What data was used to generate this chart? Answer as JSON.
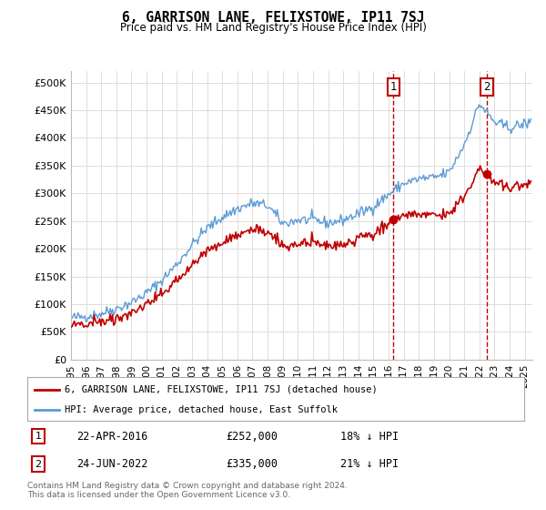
{
  "title": "6, GARRISON LANE, FELIXSTOWE, IP11 7SJ",
  "subtitle": "Price paid vs. HM Land Registry's House Price Index (HPI)",
  "ytick_values": [
    0,
    50000,
    100000,
    150000,
    200000,
    250000,
    300000,
    350000,
    400000,
    450000,
    500000
  ],
  "ylim": [
    0,
    520000
  ],
  "xlim_start": 1995.0,
  "xlim_end": 2025.5,
  "hpi_color": "#5b9bd5",
  "price_color": "#c00000",
  "marker1_date": 2016.31,
  "marker1_price": 252000,
  "marker2_date": 2022.48,
  "marker2_price": 335000,
  "annotation1_date": "22-APR-2016",
  "annotation1_price": "£252,000",
  "annotation1_hpi": "18% ↓ HPI",
  "annotation2_date": "24-JUN-2022",
  "annotation2_price": "£335,000",
  "annotation2_hpi": "21% ↓ HPI",
  "legend_line1": "6, GARRISON LANE, FELIXSTOWE, IP11 7SJ (detached house)",
  "legend_line2": "HPI: Average price, detached house, East Suffolk",
  "footer": "Contains HM Land Registry data © Crown copyright and database right 2024.\nThis data is licensed under the Open Government Licence v3.0.",
  "background_color": "#ffffff",
  "grid_color": "#dddddd",
  "hpi_t_points": [
    1995,
    1996,
    1997,
    1998,
    1999,
    2000,
    2001,
    2002,
    2003,
    2004,
    2005,
    2006,
    2007,
    2008,
    2009,
    2010,
    2011,
    2012,
    2013,
    2014,
    2015,
    2016,
    2017,
    2018,
    2019,
    2020,
    2021,
    2022,
    2023,
    2024,
    2025.4
  ],
  "hpi_v_points": [
    75000,
    78000,
    83000,
    92000,
    103000,
    120000,
    143000,
    172000,
    207000,
    237000,
    257000,
    272000,
    282000,
    278000,
    245000,
    252000,
    252000,
    246000,
    252000,
    263000,
    276000,
    298000,
    318000,
    326000,
    328000,
    338000,
    388000,
    462000,
    428000,
    418000,
    428000
  ]
}
